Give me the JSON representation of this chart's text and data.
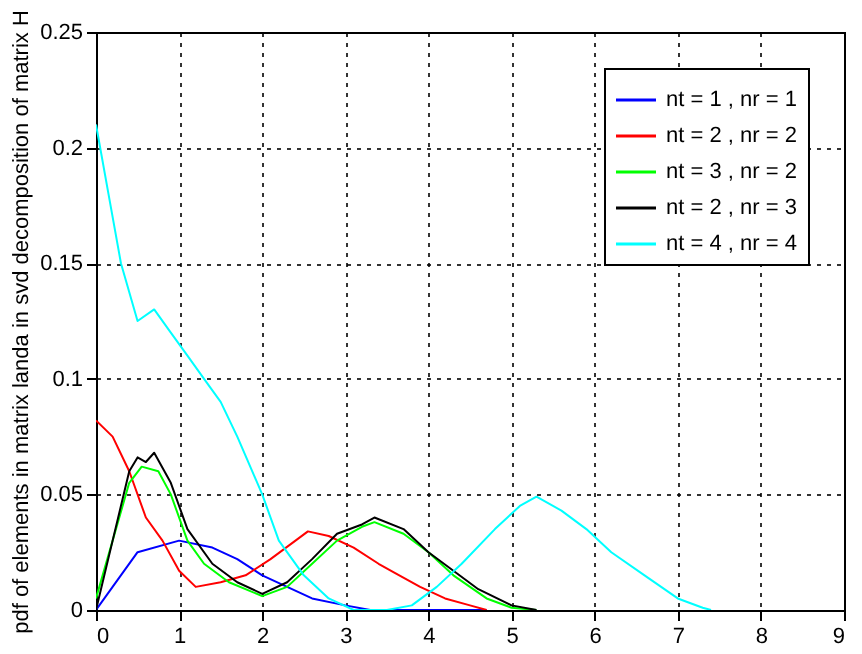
{
  "chart_data": {
    "type": "line",
    "ylabel": "pdf of elements in matrix landa in svd decomposition of matrix H",
    "xlim": [
      0,
      9
    ],
    "ylim": [
      0,
      0.25
    ],
    "xticks": [
      0,
      1,
      2,
      3,
      4,
      5,
      6,
      7,
      8,
      9
    ],
    "yticks": [
      0,
      0.05,
      0.1,
      0.15,
      0.2,
      0.25
    ],
    "grid": true,
    "legend": "top right",
    "line_style": "solid",
    "series": [
      {
        "name": "nt = 1 , nr = 1",
        "color": "#0000ff",
        "x": [
          0,
          0.5,
          1,
          1.4,
          1.7,
          2,
          2.3,
          2.6,
          3,
          3.3,
          4,
          4.7
        ],
        "values": [
          0,
          0.025,
          0.03,
          0.027,
          0.022,
          0.015,
          0.01,
          0.005,
          0.002,
          0,
          0,
          0
        ]
      },
      {
        "name": "nt = 2 , nr = 2",
        "color": "#ff0000",
        "x": [
          0,
          0.2,
          0.4,
          0.6,
          0.8,
          1,
          1.2,
          1.5,
          1.8,
          2.1,
          2.4,
          2.55,
          2.8,
          3.1,
          3.4,
          3.6,
          3.9,
          4.2,
          4.5,
          4.7
        ],
        "values": [
          0.082,
          0.075,
          0.06,
          0.04,
          0.03,
          0.017,
          0.01,
          0.012,
          0.015,
          0.022,
          0.03,
          0.034,
          0.032,
          0.027,
          0.02,
          0.016,
          0.01,
          0.005,
          0.002,
          0
        ]
      },
      {
        "name": "nt = 3 , nr = 2",
        "color": "#00ff00",
        "x": [
          0,
          0.2,
          0.4,
          0.55,
          0.75,
          0.9,
          1.1,
          1.3,
          1.6,
          2,
          2.3,
          2.6,
          2.9,
          3.2,
          3.35,
          3.7,
          4,
          4.3,
          4.7,
          5,
          5.3
        ],
        "values": [
          0.005,
          0.03,
          0.055,
          0.062,
          0.06,
          0.05,
          0.03,
          0.02,
          0.012,
          0.006,
          0.01,
          0.02,
          0.03,
          0.036,
          0.038,
          0.033,
          0.025,
          0.015,
          0.005,
          0.001,
          0
        ]
      },
      {
        "name": "nt = 2 , nr = 3",
        "color": "#000000",
        "x": [
          0,
          0.2,
          0.4,
          0.5,
          0.6,
          0.7,
          0.9,
          1.1,
          1.4,
          1.7,
          2,
          2.3,
          2.6,
          2.9,
          3.2,
          3.35,
          3.7,
          4,
          4.3,
          4.6,
          5,
          5.3
        ],
        "values": [
          0,
          0.03,
          0.06,
          0.066,
          0.064,
          0.068,
          0.055,
          0.035,
          0.02,
          0.012,
          0.007,
          0.012,
          0.022,
          0.033,
          0.037,
          0.04,
          0.035,
          0.025,
          0.017,
          0.009,
          0.002,
          0
        ]
      },
      {
        "name": "nt = 4 , nr = 4",
        "color": "#00ffff",
        "x": [
          0,
          0.15,
          0.3,
          0.5,
          0.7,
          0.9,
          1.1,
          1.3,
          1.5,
          1.7,
          2,
          2.2,
          2.5,
          2.8,
          3.1,
          3.5,
          3.8,
          4.1,
          4.4,
          4.8,
          5.1,
          5.3,
          5.6,
          5.9,
          6.2,
          6.6,
          7,
          7.3,
          7.4
        ],
        "values": [
          0.21,
          0.18,
          0.15,
          0.125,
          0.13,
          0.12,
          0.11,
          0.1,
          0.09,
          0.075,
          0.05,
          0.03,
          0.015,
          0.005,
          0,
          0,
          0.002,
          0.01,
          0.02,
          0.035,
          0.045,
          0.049,
          0.043,
          0.035,
          0.025,
          0.015,
          0.005,
          0.001,
          0
        ]
      }
    ]
  }
}
